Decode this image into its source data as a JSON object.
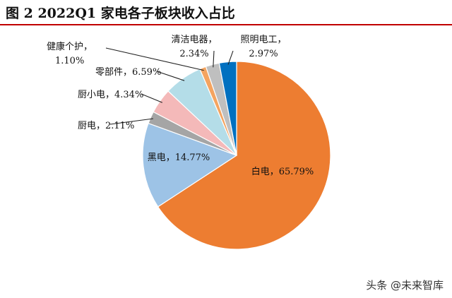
{
  "chart_data": {
    "type": "pie",
    "title": "图 2 2022Q1 家电各子板块收入占比",
    "slices": [
      {
        "name": "白电",
        "value": 65.79,
        "label": "65.79%",
        "color": "#ed7d31"
      },
      {
        "name": "黑电",
        "value": 14.77,
        "label": "14.77%",
        "color": "#9dc3e6"
      },
      {
        "name": "厨电",
        "value": 2.11,
        "label": "2.11%",
        "color": "#a5a5a5"
      },
      {
        "name": "厨小电",
        "value": 4.34,
        "label": "4.34%",
        "color": "#f4b9b9"
      },
      {
        "name": "零部件",
        "value": 6.59,
        "label": "6.59%",
        "color": "#b4dde8"
      },
      {
        "name": "健康个护",
        "value": 1.1,
        "label": "1.10%",
        "color": "#f4a460"
      },
      {
        "name": "清洁电器",
        "value": 2.34,
        "label": "2.34%",
        "color": "#bfbfbf"
      },
      {
        "name": "照明电工",
        "value": 2.97,
        "label": "2.97%",
        "color": "#0070c0"
      }
    ],
    "legend": "none"
  },
  "watermark": "头条 @未来智库"
}
